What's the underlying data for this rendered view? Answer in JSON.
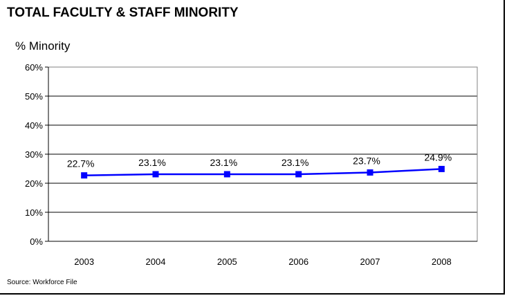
{
  "title": "TOTAL FACULTY & STAFF MINORITY",
  "source": "Source:  Workforce File",
  "chart_data": {
    "type": "line",
    "categories": [
      "2003",
      "2004",
      "2005",
      "2006",
      "2007",
      "2008"
    ],
    "series": [
      {
        "values": [
          22.7,
          23.1,
          23.1,
          23.1,
          23.7,
          24.9
        ],
        "labels": [
          "22.7%",
          "23.1%",
          "23.1%",
          "23.1%",
          "23.7%",
          "24.9%"
        ],
        "color": "#0000ff"
      }
    ],
    "ylabel": "% Minority",
    "ylim": [
      0,
      60
    ],
    "yticks": [
      0,
      10,
      20,
      30,
      40,
      50,
      60
    ],
    "ytick_labels": [
      "0%",
      "10%",
      "20%",
      "30%",
      "40%",
      "50%",
      "60%"
    ],
    "grid": true,
    "legend": "none"
  }
}
